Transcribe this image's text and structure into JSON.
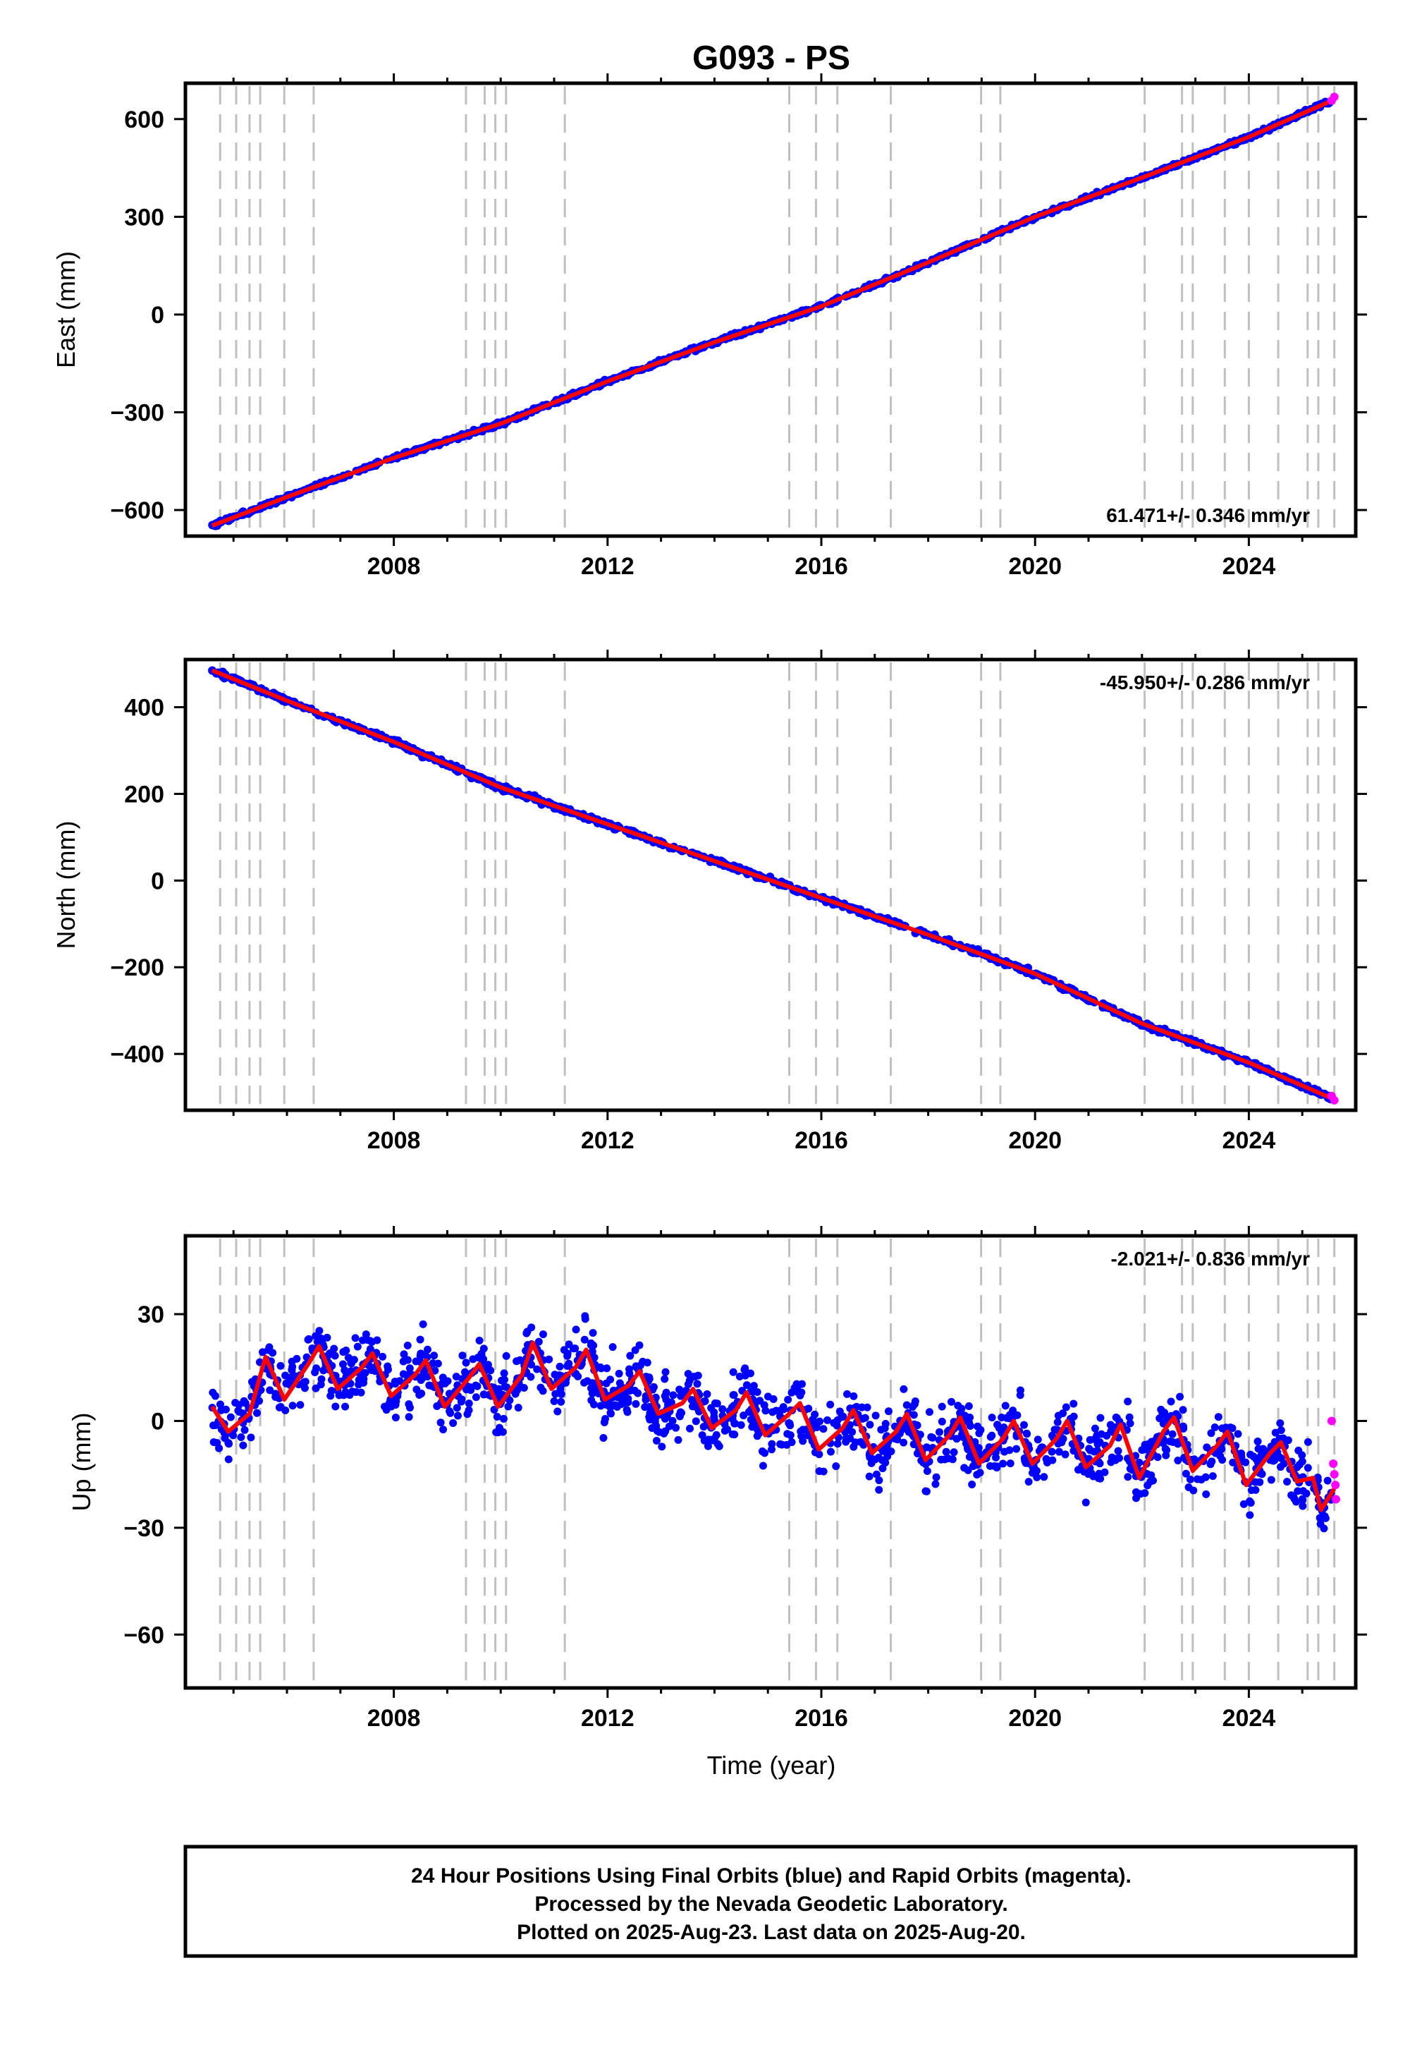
{
  "title": "G093 - PS",
  "xlabel": "Time (year)",
  "footer": {
    "line1": "24 Hour Positions Using Final Orbits (blue) and Rapid Orbits (magenta).",
    "line2": "Processed by the Nevada Geodetic Laboratory.",
    "line3": "Plotted on 2025-Aug-23. Last data on 2025-Aug-20."
  },
  "colors": {
    "final": "#0000ff",
    "rapid": "#ff00ff",
    "model": "#ff0000",
    "offsets": "#c0c0c0"
  },
  "chart_data": [
    {
      "type": "scatter",
      "component": "East",
      "ylabel": "East (mm)",
      "rate_label": "61.471+/- 0.346 mm/yr",
      "xlim": [
        2004.1,
        2026.0
      ],
      "ylim": [
        -680,
        710
      ],
      "xticks": [
        "2008",
        "2012",
        "2016",
        "2020",
        "2024"
      ],
      "xtick_values": [
        2008,
        2012,
        2016,
        2020,
        2024
      ],
      "yticks": [
        "600",
        "300",
        "0",
        "−300",
        "−600"
      ],
      "ytick_values": [
        600,
        300,
        0,
        -300,
        -600
      ],
      "x": [
        2004.6,
        2006.0,
        2008.0,
        2010.0,
        2012.0,
        2014.0,
        2016.0,
        2018.0,
        2020.0,
        2022.0,
        2024.0,
        2025.6
      ],
      "y": [
        -648,
        -560,
        -440,
        -335,
        -205,
        -85,
        25,
        160,
        300,
        420,
        545,
        660
      ],
      "rapid_x": [
        2025.55,
        2025.6
      ],
      "rapid_y": [
        657,
        668
      ]
    },
    {
      "type": "scatter",
      "component": "North",
      "ylabel": "North (mm)",
      "rate_label": "-45.950+/- 0.286 mm/yr",
      "xlim": [
        2004.1,
        2026.0
      ],
      "ylim": [
        -530,
        510
      ],
      "xticks": [
        "2008",
        "2012",
        "2016",
        "2020",
        "2024"
      ],
      "xtick_values": [
        2008,
        2012,
        2016,
        2020,
        2024
      ],
      "yticks": [
        "400",
        "200",
        "0",
        "−200",
        "−400"
      ],
      "ytick_values": [
        400,
        200,
        0,
        -200,
        -400
      ],
      "x": [
        2004.6,
        2006.0,
        2008.0,
        2010.0,
        2012.0,
        2014.0,
        2016.0,
        2018.0,
        2020.0,
        2022.0,
        2024.0,
        2025.6
      ],
      "y": [
        485,
        415,
        320,
        215,
        130,
        45,
        -40,
        -125,
        -215,
        -330,
        -420,
        -505
      ],
      "rapid_x": [
        2025.55,
        2025.6
      ],
      "rapid_y": [
        -497,
        -507
      ]
    },
    {
      "type": "scatter",
      "component": "Up",
      "ylabel": "Up (mm)",
      "rate_label": "-2.021+/- 0.836 mm/yr",
      "xlim": [
        2004.1,
        2026.0
      ],
      "ylim": [
        -75,
        52
      ],
      "xticks": [
        "2008",
        "2012",
        "2016",
        "2020",
        "2024"
      ],
      "xtick_values": [
        2008,
        2012,
        2016,
        2020,
        2024
      ],
      "yticks": [
        "30",
        "0",
        "−30",
        "−60"
      ],
      "ytick_values": [
        30,
        0,
        -30,
        -60
      ],
      "model_x": [
        2004.6,
        2004.9,
        2005.3,
        2005.6,
        2005.95,
        2006.4,
        2006.6,
        2006.95,
        2007.4,
        2007.6,
        2007.95,
        2008.4,
        2008.6,
        2008.95,
        2009.4,
        2009.6,
        2009.95,
        2010.4,
        2010.6,
        2010.95,
        2011.4,
        2011.6,
        2011.95,
        2012.4,
        2012.6,
        2012.95,
        2013.4,
        2013.6,
        2013.95,
        2014.4,
        2014.6,
        2014.95,
        2015.4,
        2015.6,
        2015.95,
        2016.4,
        2016.6,
        2016.95,
        2017.4,
        2017.6,
        2017.95,
        2018.4,
        2018.6,
        2018.95,
        2019.4,
        2019.6,
        2019.95,
        2020.4,
        2020.6,
        2020.95,
        2021.4,
        2021.6,
        2021.95,
        2022.4,
        2022.6,
        2022.95,
        2023.4,
        2023.6,
        2023.95,
        2024.4,
        2024.6,
        2024.9,
        2025.2,
        2025.35,
        2025.6
      ],
      "model_y": [
        4,
        -3,
        2,
        18,
        6,
        16,
        21,
        9,
        15,
        19,
        7,
        13,
        17,
        4,
        12,
        16,
        4,
        13,
        22,
        9,
        15,
        20,
        6,
        10,
        14,
        2,
        5,
        9,
        -2,
        3,
        8,
        -4,
        2,
        5,
        -8,
        -2,
        3,
        -9,
        -3,
        2,
        -11,
        -4,
        1,
        -12,
        -5,
        0,
        -12,
        -5,
        0,
        -13,
        -7,
        -1,
        -16,
        -3,
        1,
        -14,
        -7,
        -3,
        -18,
        -9,
        -6,
        -17,
        -16,
        -25,
        -19
      ],
      "rapid_x": [
        2025.55,
        2025.58,
        2025.6,
        2025.62,
        2025.63
      ],
      "rapid_y": [
        0,
        -12,
        -15,
        -18,
        -22
      ]
    }
  ],
  "offset_years": [
    2004.75,
    2005.05,
    2005.3,
    2005.5,
    2005.95,
    2006.5,
    2009.35,
    2009.7,
    2009.9,
    2010.1,
    2011.2,
    2015.4,
    2015.9,
    2016.3,
    2017.3,
    2018.99,
    2019.35,
    2022.05,
    2022.75,
    2022.95,
    2023.55,
    2024.0,
    2024.55,
    2025.1,
    2025.3,
    2025.6
  ]
}
